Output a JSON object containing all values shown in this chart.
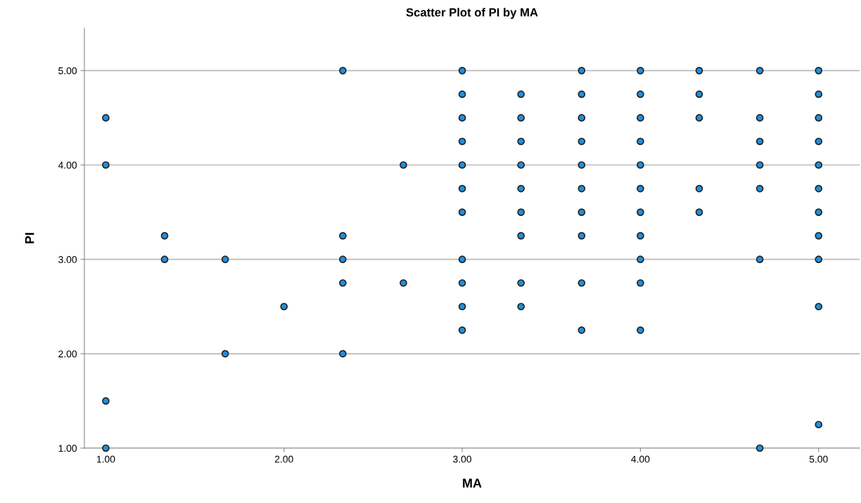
{
  "chart_data": {
    "type": "scatter",
    "title": "Scatter Plot of PI by MA",
    "xlabel": "MA",
    "ylabel": "PI",
    "series": [
      {
        "color": "#1f8fdf",
        "x": [
          1,
          1,
          1,
          1,
          1.33,
          1.33,
          1.67,
          1.67,
          2,
          2.33,
          2.33,
          2.33,
          2.33,
          2.33,
          2.67,
          2.67,
          3,
          3,
          3,
          3,
          3,
          3,
          3,
          3,
          3,
          3,
          3,
          3.33,
          3.33,
          3.33,
          3.33,
          3.33,
          3.33,
          3.33,
          3.33,
          3.33,
          3.67,
          3.67,
          3.67,
          3.67,
          3.67,
          3.67,
          3.67,
          3.67,
          3.67,
          3.67,
          4,
          4,
          4,
          4,
          4,
          4,
          4,
          4,
          4,
          4,
          4,
          4.33,
          4.33,
          4.33,
          4.33,
          4.33,
          4.67,
          4.67,
          4.67,
          4.67,
          4.67,
          4.67,
          4.67,
          5,
          5,
          5,
          5,
          5,
          5,
          5,
          5,
          5,
          5,
          5
        ],
        "values": [
          4.5,
          4,
          1.5,
          1,
          3.25,
          3,
          3,
          2,
          2.5,
          5,
          3.25,
          3,
          2.75,
          2,
          4,
          2.75,
          5,
          4.75,
          4.5,
          4.25,
          4,
          3.75,
          3.5,
          3,
          2.75,
          2.5,
          2.25,
          4.75,
          4.5,
          4.25,
          4,
          3.75,
          3.5,
          3.25,
          2.75,
          2.5,
          5,
          4.75,
          4.5,
          4.25,
          4,
          3.75,
          3.5,
          3.25,
          2.75,
          2.25,
          5,
          4.75,
          4.5,
          4.25,
          4,
          3.75,
          3.5,
          3.25,
          3,
          2.75,
          2.25,
          5,
          4.75,
          4.5,
          3.75,
          3.5,
          5,
          4.5,
          4.25,
          4,
          3.75,
          3,
          1,
          5,
          4.75,
          4.5,
          4.25,
          4,
          3.75,
          3.5,
          3.25,
          3,
          2.5,
          1.25
        ]
      }
    ],
    "xlim": [
      0.88,
      5.23
    ],
    "xticks": [
      {
        "value": 1,
        "label": "1.00"
      },
      {
        "value": 2,
        "label": "2.00"
      },
      {
        "value": 3,
        "label": "3.00"
      },
      {
        "value": 4,
        "label": "4.00"
      },
      {
        "value": 5,
        "label": "5.00"
      }
    ],
    "ylim": [
      1,
      5.45
    ],
    "yticks": [
      {
        "value": 1,
        "label": "1.00"
      },
      {
        "value": 2,
        "label": "2.00"
      },
      {
        "value": 3,
        "label": "3.00"
      },
      {
        "value": 4,
        "label": "4.00"
      },
      {
        "value": 5,
        "label": "5.00"
      }
    ],
    "grid": "y",
    "marker": "circle"
  }
}
